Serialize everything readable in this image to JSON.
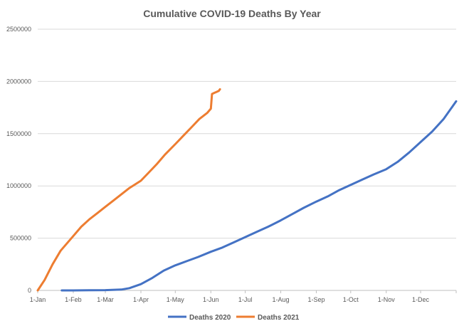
{
  "chart_data": {
    "type": "line",
    "title": "Cumulative COVID-19 Deaths By Year",
    "xlabel": "",
    "ylabel": "",
    "x_ticks": [
      "1-Jan",
      "1-Feb",
      "1-Mar",
      "1-Apr",
      "1-May",
      "1-Jun",
      "1-Jul",
      "1-Aug",
      "1-Sep",
      "1-Oct",
      "1-Nov",
      "1-Dec"
    ],
    "x_tick_days": [
      1,
      32,
      60,
      91,
      121,
      152,
      182,
      213,
      244,
      274,
      305,
      335
    ],
    "xlim_days": [
      1,
      366
    ],
    "y_ticks": [
      0,
      500000,
      1000000,
      1500000,
      2000000,
      2500000
    ],
    "y_tick_labels": [
      "0",
      "500000",
      "1000000",
      "1500000",
      "2000000",
      "2500000"
    ],
    "ylim": [
      0,
      2500000
    ],
    "grid": "horizontal",
    "legend": "bottom",
    "series": [
      {
        "name": "Deaths 2020",
        "color": "#4472C4",
        "x_day": [
          22,
          32,
          46,
          60,
          74,
          81,
          91,
          101,
          111,
          121,
          131,
          141,
          152,
          162,
          172,
          182,
          192,
          202,
          213,
          223,
          233,
          244,
          254,
          264,
          274,
          284,
          294,
          305,
          315,
          325,
          335,
          345,
          355,
          366
        ],
        "values": [
          0,
          0,
          2000,
          3000,
          8000,
          22000,
          60000,
          120000,
          190000,
          240000,
          280000,
          320000,
          370000,
          410000,
          460000,
          510000,
          560000,
          610000,
          670000,
          730000,
          790000,
          850000,
          900000,
          960000,
          1010000,
          1060000,
          1110000,
          1160000,
          1230000,
          1320000,
          1420000,
          1520000,
          1640000,
          1810000
        ]
      },
      {
        "name": "Deaths 2021",
        "color": "#ED7D31",
        "x_day": [
          1,
          7,
          14,
          21,
          32,
          39,
          46,
          53,
          60,
          67,
          74,
          81,
          91,
          98,
          105,
          112,
          121,
          128,
          135,
          142,
          149,
          152,
          153,
          155,
          157,
          159,
          160
        ],
        "values": [
          0,
          100000,
          250000,
          380000,
          520000,
          610000,
          680000,
          740000,
          800000,
          860000,
          920000,
          980000,
          1050000,
          1130000,
          1210000,
          1300000,
          1400000,
          1480000,
          1560000,
          1640000,
          1700000,
          1740000,
          1880000,
          1890000,
          1900000,
          1910000,
          1925000
        ]
      }
    ]
  }
}
